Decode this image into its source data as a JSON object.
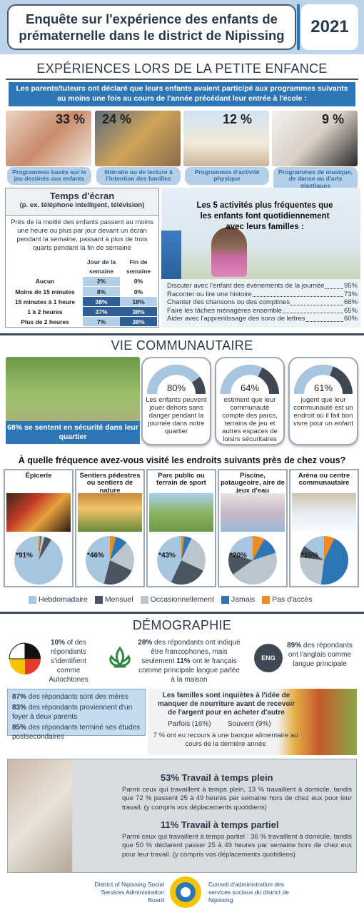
{
  "header": {
    "title": "Enquête sur l'expérience des enfants de prématernelle dans le district de Nipissing",
    "year": "2021"
  },
  "early_childhood": {
    "heading": "EXPÉRIENCES LORS DE LA PETITE ENFANCE",
    "intro": "Les parents/tuteurs ont déclaré que leurs enfants avaient participé aux programmes suivants au moins une fois au cours de l'année précédant leur entrée à l'école :",
    "programs": [
      {
        "percent": "33 %",
        "label": "Programmes basés sur le jeu destinés aux enfants"
      },
      {
        "percent": "24 %",
        "label": "littératie ou de lecture à l'intention des familles"
      },
      {
        "percent": "12 %",
        "label": "Programmes d'activité physique"
      },
      {
        "percent": "9 %",
        "label": "Programmes de musique, de danse ou d'arts plastiques"
      }
    ],
    "screen_time": {
      "title": "Temps d'écran",
      "subtitle": "(p. ex. téléphone intelligent, télévision)",
      "text": "Près de la moitié des enfants passent au moins une heure ou plus par jour devant un écran pendant la semaine, passant à plus de trois quarts pendant la fin de semaine",
      "columns": [
        "Jour de la semaine",
        "Fin de semaine"
      ],
      "rows": [
        [
          "Aucun",
          "2%",
          "0%"
        ],
        [
          "Moins de 15 minutes",
          "8%",
          "0%"
        ],
        [
          "15 minutes à 1 heure",
          "38%",
          "18%"
        ],
        [
          "1 à 2 heures",
          "37%",
          "38%"
        ],
        [
          "Plus de 2 heures",
          "7%",
          "38%"
        ]
      ]
    },
    "activities": {
      "title": "Les 5 activités plus fréquentes que les enfants font quotidiennement avec leurs familles :",
      "items": [
        {
          "label": "Discuter avec l'enfant des événements de la journée",
          "value": "95%"
        },
        {
          "label": "Raconter ou lire une histoire",
          "value": "73%"
        },
        {
          "label": "Chanter des chansons ou des comptines",
          "value": "66%"
        },
        {
          "label": "Faire les tâches ménagères ensemble",
          "value": "65%"
        },
        {
          "label": "Aider avec l'apprentissage des sons de lettres",
          "value": "60%"
        }
      ]
    }
  },
  "community": {
    "heading": "VIE COMMUNAUTAIRE",
    "photo_caption": "68% se sentent en sécurité dans leur quartier",
    "gauges": [
      {
        "value": 80,
        "label": "80%",
        "text": "Les enfants peuvent jouer dehors sans danger pendant la journée dans notre quartier"
      },
      {
        "value": 64,
        "label": "64%",
        "text": "estiment que leur communauté compte des parcs, terrains de jeu et autres espaces de loisirs sécuritaires"
      },
      {
        "value": 61,
        "label": "61%",
        "text": "jugent que leur communauté est un endroit où il fait bon vivre pour un enfant"
      }
    ],
    "question": "À quelle fréquence avez-vous visité les endroits suivants près de chez vous?",
    "legend": [
      {
        "name": "Hebdomadaire",
        "color": "#a9c6e0"
      },
      {
        "name": "Mensuel",
        "color": "#4a5561"
      },
      {
        "name": "Occasionnellement",
        "color": "#bcc4cd"
      },
      {
        "name": "Jamais",
        "color": "#2e75b6"
      },
      {
        "name": "Pas d'accès",
        "color": "#f28a22"
      }
    ],
    "places": [
      {
        "title": "Épicerie",
        "label": "*91%",
        "values": [
          91,
          5,
          2,
          1,
          1
        ]
      },
      {
        "title": "Sentiers pédestres ou sentiers de nature",
        "label": "*46%",
        "values": [
          46,
          22,
          20,
          8,
          4
        ]
      },
      {
        "title": "Parc public ou terrain de sport",
        "label": "*43%",
        "values": [
          43,
          25,
          25,
          5,
          2
        ]
      },
      {
        "title": "Piscine, pataugeoire, aire de jeux d'eau",
        "label": "*20%",
        "values": [
          20,
          15,
          45,
          12,
          8
        ]
      },
      {
        "title": "Aréna ou centre communautaire",
        "label": "*15%",
        "values": [
          15,
          8,
          25,
          45,
          7
        ]
      }
    ]
  },
  "demographics": {
    "heading": "DÉMOGRAPHIE",
    "indigenous": [
      "10%",
      " of des répondants s'identifient comme Autochtones"
    ],
    "francophone": [
      "28%",
      " des répondants ont indiqué être francophones, mais seulement ",
      "11%",
      " ont le français comme principale langue parlée à la maison"
    ],
    "english_icon": "ENG",
    "english": [
      "89%",
      " des répondants ont l'anglais comme langue principale"
    ],
    "stats": [
      [
        "87%",
        " des répondants sont des mères"
      ],
      [
        "83%",
        " des répondants proviennent d'un foyer à deux parents"
      ],
      [
        "85%",
        " des répondants terminé ses études postsecondaires"
      ]
    ],
    "food": {
      "title": "Les familles sont inquiètes à l'idée de manquer de nourriture avant de recevoir de l'argent pour en acheter d'autre",
      "sometimes": "Parfois (16%)",
      "often": "Souvent (9%)",
      "food_bank": "7 % ont eu recours à une banque alimentaire au cours de la dernière année"
    },
    "work": [
      {
        "title": "53% Travail à temps plein",
        "text": "Parmi ceux qui travaillent à temps plein, 13 % travaillent à domicile, tandis que 72 % passent 25 à 49 heures par semaine hors de chez eux pour leur travail. (y compris vos déplacements quotidiens)"
      },
      {
        "title": "11% Travail à temps partiel",
        "text": "Parmi ceux qui travaillent à temps partiel : 36 % travaillent à domicile, tandis que 50 % déclarent passer 25 à 49 heures par semaine hors de chez eux pour leur travail. (y compris vos déplacements quotidiens)"
      }
    ]
  },
  "footer": {
    "org_en": "District of Nipissing Social Services Administration Board",
    "org_fr": "Conseil d'administration des services sociaux du district de Nipissing"
  }
}
